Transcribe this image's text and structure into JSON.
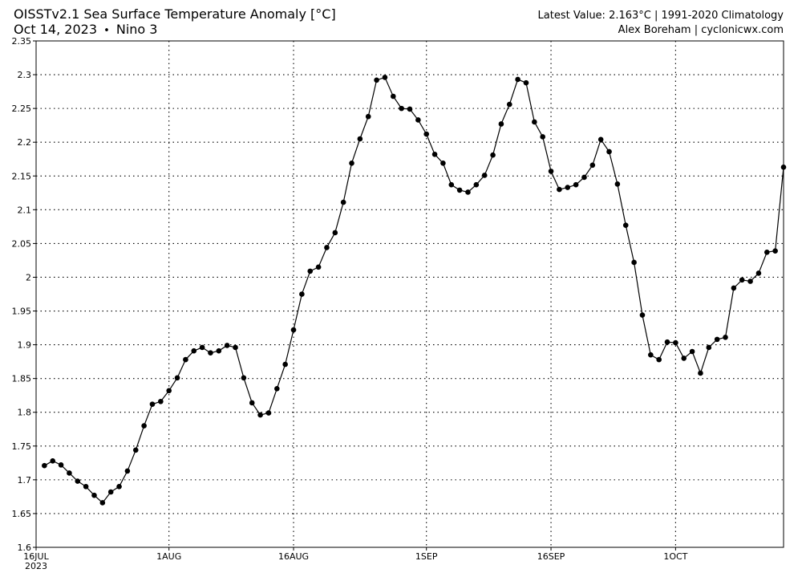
{
  "header": {
    "title": "OISSTv2.1 Sea Surface Temperature Anomaly [°C]",
    "subtitle_date": "Oct 14, 2023",
    "subtitle_separator": "•",
    "subtitle_region": "Nino 3",
    "latest_value": "Latest Value: 2.163°C | 1991-2020 Climatology",
    "credit": "Alex Boreham | cyclonicwx.com"
  },
  "chart_data": {
    "type": "line",
    "title": "OISSTv2.1 Sea Surface Temperature Anomaly [°C]",
    "xlabel": "",
    "ylabel": "",
    "x_start": "2023-07-16",
    "x_end": "2023-10-14",
    "ylim": [
      1.6,
      2.35
    ],
    "yticks": [
      1.6,
      1.65,
      1.7,
      1.75,
      1.8,
      1.85,
      1.9,
      1.95,
      2,
      2.05,
      2.1,
      2.15,
      2.2,
      2.25,
      2.3,
      2.35
    ],
    "ytick_labels": [
      "1.6",
      "1.65",
      "1.7",
      "1.75",
      "1.8",
      "1.85",
      "1.9",
      "1.95",
      "2",
      "2.05",
      "2.1",
      "2.15",
      "2.2",
      "2.25",
      "2.3",
      "2.35"
    ],
    "xticks": [
      {
        "date": "2023-07-16",
        "label": "16JUL",
        "sublabel": "2023"
      },
      {
        "date": "2023-08-01",
        "label": "1AUG"
      },
      {
        "date": "2023-08-16",
        "label": "16AUG"
      },
      {
        "date": "2023-09-01",
        "label": "1SEP"
      },
      {
        "date": "2023-09-16",
        "label": "16SEP"
      },
      {
        "date": "2023-10-01",
        "label": "1OCT"
      }
    ],
    "grid": true,
    "line_color": "#000000",
    "series": [
      {
        "x": [
          "2023-07-17",
          "2023-07-18",
          "2023-07-19",
          "2023-07-20",
          "2023-07-21",
          "2023-07-22",
          "2023-07-23",
          "2023-07-24",
          "2023-07-25",
          "2023-07-26",
          "2023-07-27",
          "2023-07-28",
          "2023-07-29",
          "2023-07-30",
          "2023-07-31",
          "2023-08-01",
          "2023-08-02",
          "2023-08-03",
          "2023-08-04",
          "2023-08-05",
          "2023-08-06",
          "2023-08-07",
          "2023-08-08",
          "2023-08-09",
          "2023-08-10",
          "2023-08-11",
          "2023-08-12",
          "2023-08-13",
          "2023-08-14",
          "2023-08-15",
          "2023-08-16",
          "2023-08-17",
          "2023-08-18",
          "2023-08-19",
          "2023-08-20",
          "2023-08-21",
          "2023-08-22",
          "2023-08-23",
          "2023-08-24",
          "2023-08-25",
          "2023-08-26",
          "2023-08-27",
          "2023-08-28",
          "2023-08-29",
          "2023-08-30",
          "2023-08-31",
          "2023-09-01",
          "2023-09-02",
          "2023-09-03",
          "2023-09-04",
          "2023-09-05",
          "2023-09-06",
          "2023-09-07",
          "2023-09-08",
          "2023-09-09",
          "2023-09-10",
          "2023-09-11",
          "2023-09-12",
          "2023-09-13",
          "2023-09-14",
          "2023-09-15",
          "2023-09-16",
          "2023-09-17",
          "2023-09-18",
          "2023-09-19",
          "2023-09-20",
          "2023-09-21",
          "2023-09-22",
          "2023-09-23",
          "2023-09-24",
          "2023-09-25",
          "2023-09-26",
          "2023-09-27",
          "2023-09-28",
          "2023-09-29",
          "2023-09-30",
          "2023-10-01",
          "2023-10-02",
          "2023-10-03",
          "2023-10-04",
          "2023-10-05",
          "2023-10-06",
          "2023-10-07",
          "2023-10-08",
          "2023-10-09",
          "2023-10-10",
          "2023-10-11",
          "2023-10-12",
          "2023-10-13",
          "2023-10-14"
        ],
        "y": [
          1.721,
          1.728,
          1.722,
          1.71,
          1.698,
          1.69,
          1.677,
          1.666,
          1.682,
          1.69,
          1.713,
          1.744,
          1.78,
          1.812,
          1.816,
          1.832,
          1.851,
          1.878,
          1.891,
          1.896,
          1.888,
          1.891,
          1.899,
          1.896,
          1.851,
          1.814,
          1.796,
          1.799,
          1.835,
          1.871,
          1.922,
          1.975,
          2.009,
          2.015,
          2.044,
          2.066,
          2.111,
          2.169,
          2.205,
          2.238,
          2.292,
          2.296,
          2.268,
          2.25,
          2.249,
          2.233,
          2.212,
          2.182,
          2.169,
          2.137,
          2.129,
          2.126,
          2.137,
          2.151,
          2.181,
          2.227,
          2.256,
          2.293,
          2.288,
          2.23,
          2.208,
          2.157,
          2.13,
          2.133,
          2.137,
          2.148,
          2.166,
          2.204,
          2.186,
          2.138,
          2.077,
          2.022,
          1.944,
          1.885,
          1.878,
          1.904,
          1.903,
          1.88,
          1.89,
          1.858,
          1.896,
          1.908,
          1.911,
          1.984,
          1.996,
          1.994,
          2.006,
          2.037,
          2.039,
          2.163
        ]
      }
    ]
  }
}
